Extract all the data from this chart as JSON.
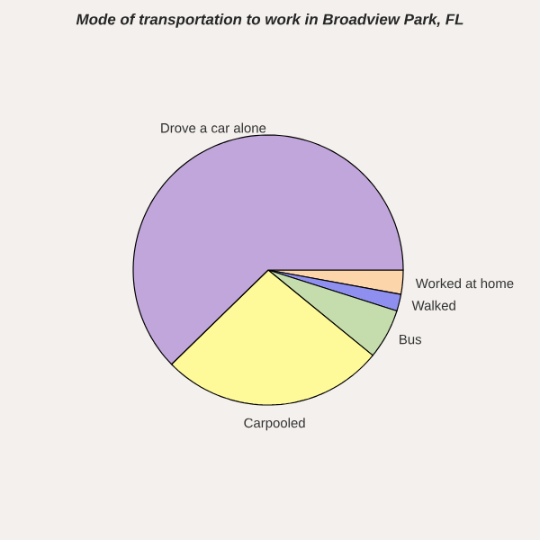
{
  "chart_data": {
    "type": "pie",
    "title": "Mode of transportation to work in Broadview Park, FL",
    "categories": [
      "Worked at home",
      "Walked",
      "Bus",
      "Carpooled",
      "Drove a car alone"
    ],
    "values": [
      2.9,
      2.0,
      6.0,
      26.8,
      62.3
    ],
    "colors": [
      "#fdd5aa",
      "#8f8ff0",
      "#c5dcac",
      "#fefa99",
      "#c0a6da"
    ]
  }
}
